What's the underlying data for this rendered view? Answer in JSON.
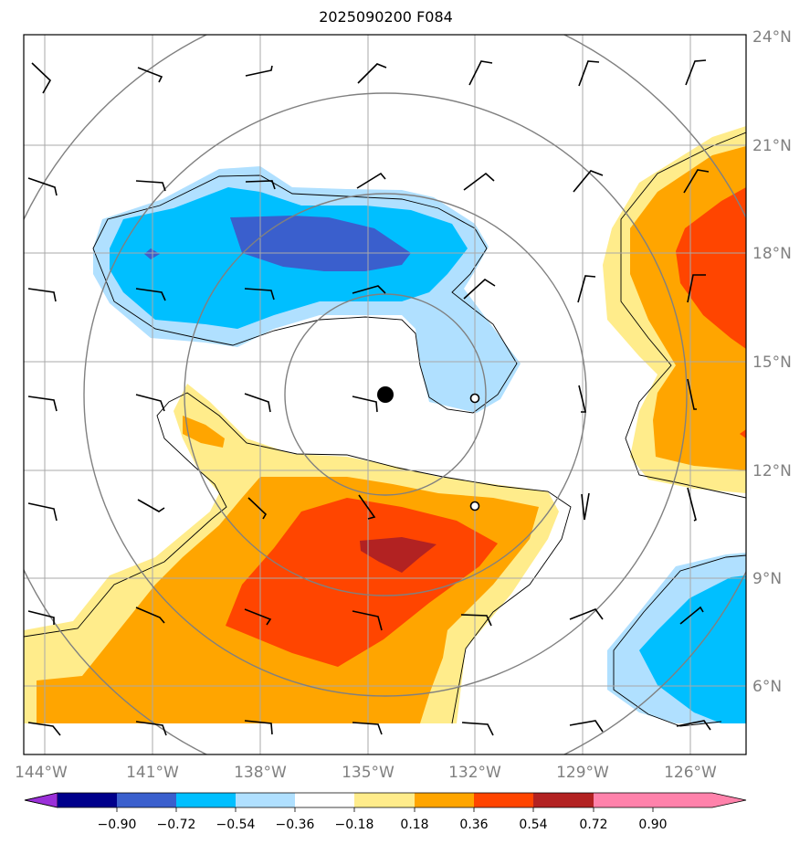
{
  "title": "2025090200 F084",
  "lat_labels": [
    "24°N",
    "21°N",
    "18°N",
    "15°N",
    "12°N",
    "9°N",
    "6°N"
  ],
  "lon_labels": [
    "144°W",
    "141°W",
    "138°W",
    "135°W",
    "132°W",
    "129°W",
    "126°W"
  ],
  "colorbar": {
    "tick_labels": [
      "−0.90",
      "−0.72",
      "−0.54",
      "−0.36",
      "−0.18",
      "0.18",
      "0.36",
      "0.54",
      "0.72",
      "0.90"
    ],
    "colors": [
      "#9b30d9",
      "#00008b",
      "#3a5fcd",
      "#00bfff",
      "#b0e0ff",
      "#ffffff",
      "#ffec8b",
      "#ffa500",
      "#ff4500",
      "#b22222",
      "#ff82ab"
    ]
  },
  "colors": {
    "neg_light": "#b0e0ff",
    "neg_mid": "#00bfff",
    "neg_dark": "#3a5fcd",
    "pos_light": "#ffec8b",
    "pos_mid": "#ffa500",
    "pos_high": "#ff4500",
    "pos_max": "#b22222",
    "grid": "#a9a9a9",
    "range_rings": "#808080"
  },
  "storm_center": {
    "lon": "134.5°W",
    "lat": "14.1°N"
  },
  "icons": [
    "storm-center-dot",
    "track-point-open-circle",
    "wind-barb"
  ]
}
